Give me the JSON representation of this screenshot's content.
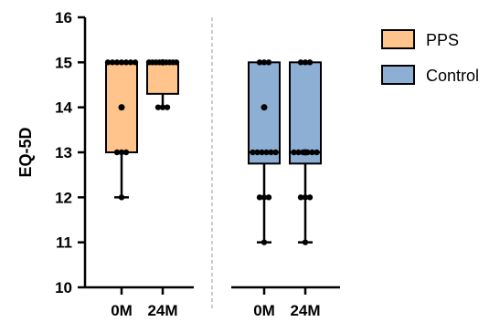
{
  "chart_data": {
    "type": "box",
    "ylabel": "EQ-5D",
    "xlabel": "",
    "ylim": [
      10,
      16
    ],
    "yticks": [
      10,
      11,
      12,
      13,
      14,
      15,
      16
    ],
    "grid": false,
    "legend_position": "top-right",
    "categories": [
      "0M",
      "24M",
      "0M",
      "24M"
    ],
    "series": [
      {
        "name": "PPS",
        "color": "#FFC48C",
        "boxes": [
          {
            "label": "0M",
            "min": 12,
            "q1": 13,
            "median": 15,
            "q3": 15,
            "max": 15,
            "mean": 14,
            "points": [
              15,
              15,
              15,
              15,
              15,
              15,
              15,
              13,
              13,
              13,
              12
            ]
          },
          {
            "label": "24M",
            "min": 14,
            "q1": 14.3,
            "median": 15,
            "q3": 15,
            "max": 15,
            "mean": 15,
            "points": [
              15,
              15,
              15,
              15,
              15,
              15,
              15,
              15,
              15,
              14,
              14,
              14
            ]
          }
        ]
      },
      {
        "name": "Control",
        "color": "#8DAFD4",
        "boxes": [
          {
            "label": "0M",
            "min": 11,
            "q1": 12.75,
            "median": 13,
            "q3": 15,
            "max": 15,
            "mean": 14,
            "points": [
              15,
              15,
              15,
              13,
              13,
              13,
              13,
              13,
              13,
              12,
              12,
              12,
              11
            ]
          },
          {
            "label": "24M",
            "min": 11,
            "q1": 12.75,
            "median": 13,
            "q3": 15,
            "max": 15,
            "mean": 13,
            "points": [
              15,
              15,
              15,
              13,
              13,
              13,
              13,
              13,
              13,
              12,
              12,
              12,
              11
            ]
          }
        ]
      }
    ]
  }
}
